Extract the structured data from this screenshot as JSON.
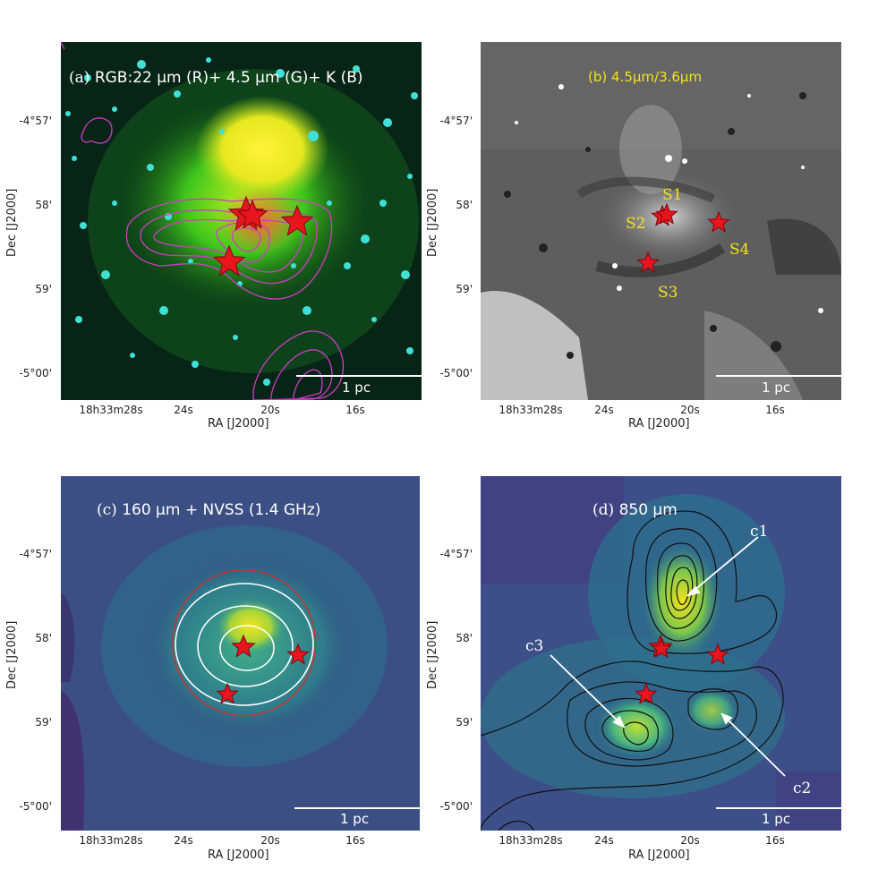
{
  "panels": {
    "a": {
      "label": "(a)",
      "title": "RGB:22 μm (R)+ 4.5 μm (G)+ K (B)",
      "scale": "1 pc",
      "colors": {
        "title": "#ffffff",
        "contour": "#d03cc8",
        "star": "#e8141e"
      }
    },
    "b": {
      "label": "(b)",
      "title": "4.5μm/3.6μm",
      "scale": "1 pc",
      "sources": [
        "S1",
        "S2",
        "S3",
        "S4"
      ],
      "colors": {
        "title": "#f2e21a",
        "sources": "#f2e21a",
        "star": "#e8141e"
      }
    },
    "c": {
      "label": "(c)",
      "title": "160 μm + NVSS (1.4 GHz)",
      "scale": "1 pc",
      "colors": {
        "title": "#ffffff",
        "contour": "#ffffff",
        "circle": "#d0302a",
        "star": "#e8141e"
      }
    },
    "d": {
      "label": "(d)",
      "title": "850 μm",
      "scale": "1 pc",
      "clumps": [
        "c1",
        "c2",
        "c3"
      ],
      "colors": {
        "title": "#ffffff",
        "contour": "#111111",
        "star": "#e8141e"
      }
    }
  },
  "axes": {
    "ylabel": "Dec [J2000]",
    "xlabel": "RA [J2000]",
    "yticks": [
      "-4°57'",
      "58'",
      "59'",
      "-5°00'"
    ],
    "xticks": [
      "18h33m28s",
      "24s",
      "20s",
      "16s"
    ]
  }
}
